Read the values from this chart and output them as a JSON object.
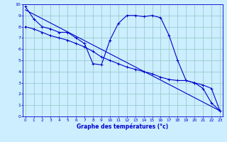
{
  "xlabel": "Graphe des températures (°c)",
  "bg_color": "#cceeff",
  "line_color": "#0000cc",
  "grid_color": "#99cccc",
  "x_ticks": [
    0,
    1,
    2,
    3,
    4,
    5,
    6,
    7,
    8,
    9,
    10,
    11,
    12,
    13,
    14,
    15,
    16,
    17,
    18,
    19,
    20,
    21,
    22,
    23
  ],
  "y_ticks": [
    0,
    1,
    2,
    3,
    4,
    5,
    6,
    7,
    8,
    9,
    10
  ],
  "ylim": [
    0,
    10
  ],
  "xlim": [
    -0.3,
    23.3
  ],
  "series1_x": [
    0,
    1,
    2,
    3,
    4,
    5,
    6,
    7,
    8,
    9,
    10,
    11,
    12,
    13,
    14,
    15,
    16,
    17,
    18,
    19,
    20,
    21,
    22,
    23
  ],
  "series1_y": [
    9.8,
    8.7,
    8.0,
    7.8,
    7.5,
    7.5,
    7.0,
    6.5,
    4.7,
    4.6,
    6.8,
    8.3,
    9.0,
    9.0,
    8.9,
    9.0,
    8.8,
    7.2,
    5.0,
    3.2,
    3.0,
    2.5,
    1.2,
    0.5
  ],
  "series2_x": [
    0,
    1,
    2,
    3,
    4,
    5,
    6,
    7,
    8,
    9,
    10,
    11,
    12,
    13,
    14,
    15,
    16,
    17,
    18,
    19,
    20,
    21,
    22,
    23
  ],
  "series2_y": [
    8.0,
    7.8,
    7.5,
    7.2,
    7.0,
    6.8,
    6.5,
    6.2,
    5.8,
    5.3,
    5.0,
    4.7,
    4.4,
    4.2,
    4.0,
    3.8,
    3.5,
    3.3,
    3.2,
    3.2,
    3.0,
    2.8,
    2.5,
    0.5
  ],
  "trend_x": [
    0,
    23
  ],
  "trend_y": [
    9.5,
    0.5
  ]
}
